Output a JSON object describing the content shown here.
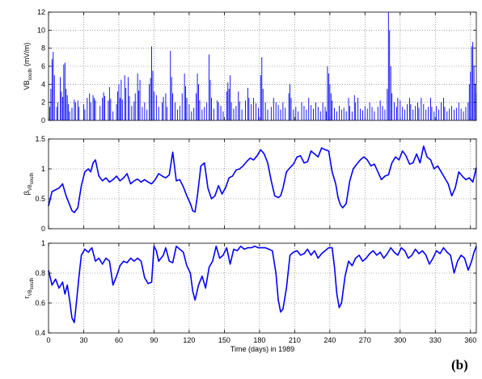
{
  "panel_label": "(b)",
  "colors": {
    "series": "#0000ff",
    "axes": "#000000",
    "grid": "#666666"
  },
  "chart_data": [
    {
      "type": "bar",
      "ylabel_main": "VB",
      "ylabel_sub": "south",
      "ylabel_unit": " (mV/m)",
      "xlim": [
        0,
        365
      ],
      "ylim": [
        0,
        12
      ],
      "yticks": [
        "0",
        "2",
        "4",
        "6",
        "8",
        "10",
        "12"
      ],
      "grid": true,
      "values": [
        [
          1,
          1.5
        ],
        [
          2,
          3.5
        ],
        [
          3,
          6.8
        ],
        [
          4,
          7.6
        ],
        [
          5,
          5.0
        ],
        [
          7,
          1.5
        ],
        [
          8,
          2.0
        ],
        [
          10,
          4.8
        ],
        [
          11,
          3.2
        ],
        [
          12,
          2.6
        ],
        [
          13,
          6.2
        ],
        [
          14,
          6.4
        ],
        [
          15,
          3.5
        ],
        [
          16,
          2.8
        ],
        [
          17,
          1.8
        ],
        [
          18,
          1.0
        ],
        [
          20,
          1.4
        ],
        [
          22,
          2.3
        ],
        [
          23,
          2.0
        ],
        [
          25,
          2.2
        ],
        [
          26,
          1.5
        ],
        [
          30,
          1.8
        ],
        [
          31,
          1.2
        ],
        [
          33,
          2.5
        ],
        [
          35,
          3.0
        ],
        [
          36,
          2.0
        ],
        [
          38,
          2.8
        ],
        [
          39,
          2.5
        ],
        [
          40,
          2.2
        ],
        [
          44,
          1.6
        ],
        [
          46,
          2.5
        ],
        [
          47,
          3.1
        ],
        [
          48,
          2.7
        ],
        [
          51,
          2.2
        ],
        [
          52,
          3.7
        ],
        [
          53,
          2.4
        ],
        [
          55,
          1.0
        ],
        [
          58,
          1.8
        ],
        [
          59,
          3.2
        ],
        [
          60,
          4.0
        ],
        [
          61,
          2.5
        ],
        [
          62,
          4.5
        ],
        [
          63,
          2.3
        ],
        [
          65,
          5.0
        ],
        [
          66,
          3.6
        ],
        [
          68,
          4.8
        ],
        [
          69,
          2.7
        ],
        [
          71,
          1.6
        ],
        [
          73,
          2.1
        ],
        [
          74,
          3.0
        ],
        [
          76,
          5.2
        ],
        [
          77,
          3.3
        ],
        [
          78,
          4.5
        ],
        [
          80,
          1.5
        ],
        [
          82,
          2.0
        ],
        [
          84,
          1.2
        ],
        [
          86,
          4.0
        ],
        [
          87,
          4.7
        ],
        [
          88,
          8.2
        ],
        [
          89,
          5.5
        ],
        [
          90,
          3.2
        ],
        [
          92,
          2.8
        ],
        [
          94,
          1.5
        ],
        [
          97,
          2.0
        ],
        [
          98,
          2.6
        ],
        [
          100,
          3.0
        ],
        [
          101,
          1.5
        ],
        [
          104,
          7.7
        ],
        [
          105,
          4.8
        ],
        [
          106,
          3.0
        ],
        [
          108,
          2.0
        ],
        [
          110,
          1.2
        ],
        [
          112,
          1.6
        ],
        [
          114,
          3.0
        ],
        [
          116,
          5.2
        ],
        [
          117,
          3.8
        ],
        [
          118,
          2.5
        ],
        [
          120,
          1.8
        ],
        [
          122,
          1.0
        ],
        [
          124,
          1.4
        ],
        [
          126,
          3.0
        ],
        [
          127,
          5.2
        ],
        [
          128,
          4.0
        ],
        [
          129,
          2.2
        ],
        [
          131,
          1.2
        ],
        [
          133,
          1.5
        ],
        [
          135,
          2.0
        ],
        [
          137,
          7.3
        ],
        [
          138,
          4.5
        ],
        [
          139,
          2.5
        ],
        [
          141,
          1.3
        ],
        [
          144,
          2.2
        ],
        [
          145,
          2.0
        ],
        [
          147,
          1.6
        ],
        [
          149,
          1.0
        ],
        [
          152,
          3.2
        ],
        [
          153,
          4.2
        ],
        [
          154,
          3.5
        ],
        [
          155,
          5.0
        ],
        [
          156,
          2.0
        ],
        [
          158,
          1.3
        ],
        [
          160,
          1.6
        ],
        [
          162,
          3.2
        ],
        [
          163,
          2.1
        ],
        [
          165,
          1.2
        ],
        [
          168,
          2.2
        ],
        [
          170,
          3.6
        ],
        [
          171,
          2.5
        ],
        [
          173,
          1.8
        ],
        [
          175,
          2.5
        ],
        [
          177,
          1.9
        ],
        [
          179,
          1.4
        ],
        [
          181,
          5.0
        ],
        [
          182,
          7.0
        ],
        [
          183,
          3.5
        ],
        [
          185,
          2.0
        ],
        [
          187,
          1.2
        ],
        [
          190,
          1.5
        ],
        [
          192,
          2.5
        ],
        [
          194,
          2.0
        ],
        [
          196,
          1.7
        ],
        [
          198,
          1.2
        ],
        [
          200,
          2.0
        ],
        [
          202,
          1.4
        ],
        [
          205,
          3.0
        ],
        [
          206,
          4.0
        ],
        [
          207,
          2.5
        ],
        [
          209,
          1.2
        ],
        [
          211,
          1.5
        ],
        [
          213,
          1.0
        ],
        [
          216,
          2.0
        ],
        [
          218,
          1.6
        ],
        [
          220,
          1.2
        ],
        [
          222,
          2.5
        ],
        [
          224,
          1.7
        ],
        [
          226,
          1.3
        ],
        [
          228,
          2.0
        ],
        [
          230,
          1.5
        ],
        [
          232,
          1.0
        ],
        [
          234,
          2.0
        ],
        [
          236,
          1.5
        ],
        [
          237,
          1.0
        ],
        [
          238,
          6.0
        ],
        [
          239,
          5.2
        ],
        [
          240,
          4.0
        ],
        [
          241,
          3.0
        ],
        [
          242,
          2.2
        ],
        [
          244,
          1.4
        ],
        [
          246,
          1.0
        ],
        [
          248,
          1.6
        ],
        [
          250,
          1.2
        ],
        [
          252,
          1.4
        ],
        [
          254,
          1.0
        ],
        [
          256,
          2.5
        ],
        [
          257,
          1.6
        ],
        [
          259,
          1.0
        ],
        [
          261,
          2.8
        ],
        [
          262,
          2.0
        ],
        [
          264,
          2.5
        ],
        [
          266,
          1.3
        ],
        [
          268,
          1.1
        ],
        [
          270,
          1.6
        ],
        [
          272,
          1.3
        ],
        [
          274,
          2.0
        ],
        [
          276,
          1.5
        ],
        [
          278,
          1.0
        ],
        [
          281,
          1.5
        ],
        [
          283,
          2.2
        ],
        [
          285,
          1.6
        ],
        [
          287,
          1.2
        ],
        [
          289,
          3.5
        ],
        [
          290,
          12.0
        ],
        [
          291,
          10.0
        ],
        [
          292,
          6.0
        ],
        [
          293,
          3.0
        ],
        [
          295,
          2.0
        ],
        [
          297,
          1.5
        ],
        [
          298,
          2.5
        ],
        [
          300,
          2.2
        ],
        [
          302,
          1.5
        ],
        [
          304,
          1.2
        ],
        [
          306,
          1.8
        ],
        [
          308,
          2.5
        ],
        [
          309,
          1.8
        ],
        [
          311,
          1.2
        ],
        [
          313,
          1.6
        ],
        [
          315,
          2.0
        ],
        [
          316,
          1.4
        ],
        [
          318,
          2.5
        ],
        [
          320,
          1.8
        ],
        [
          322,
          1.2
        ],
        [
          324,
          1.5
        ],
        [
          326,
          2.5
        ],
        [
          327,
          1.5
        ],
        [
          329,
          1.0
        ],
        [
          331,
          1.6
        ],
        [
          333,
          1.2
        ],
        [
          335,
          2.0
        ],
        [
          337,
          2.5
        ],
        [
          338,
          1.5
        ],
        [
          340,
          1.0
        ],
        [
          342,
          1.3
        ],
        [
          344,
          1.6
        ],
        [
          346,
          1.2
        ],
        [
          348,
          1.4
        ],
        [
          350,
          2.0
        ],
        [
          352,
          1.3
        ],
        [
          354,
          1.0
        ],
        [
          356,
          1.5
        ],
        [
          358,
          2.0
        ],
        [
          359,
          4.0
        ],
        [
          360,
          5.4
        ],
        [
          361,
          8.2
        ],
        [
          362,
          8.7
        ],
        [
          363,
          6.0
        ],
        [
          364,
          4.0
        ],
        [
          365,
          3.0
        ]
      ]
    },
    {
      "type": "line",
      "ylabel_main": "β",
      "ylabel_sub": "VB",
      "ylabel_subsub": "south",
      "xlim": [
        0,
        365
      ],
      "ylim": [
        0,
        1.5
      ],
      "yticks": [
        "0",
        "0.5",
        "1",
        "1.5"
      ],
      "grid": true,
      "x": [
        0,
        3,
        6,
        9,
        12,
        15,
        18,
        20,
        22,
        25,
        28,
        31,
        34,
        36,
        38,
        40,
        43,
        46,
        49,
        52,
        55,
        58,
        61,
        64,
        67,
        70,
        73,
        76,
        79,
        82,
        85,
        88,
        91,
        94,
        97,
        100,
        103,
        106,
        109,
        112,
        115,
        118,
        121,
        123,
        125,
        127,
        130,
        133,
        136,
        139,
        142,
        145,
        148,
        151,
        154,
        157,
        160,
        163,
        166,
        169,
        172,
        175,
        178,
        181,
        184,
        187,
        190,
        193,
        196,
        198,
        200,
        203,
        206,
        209,
        212,
        215,
        218,
        221,
        224,
        227,
        230,
        233,
        236,
        239,
        242,
        245,
        247,
        249,
        251,
        254,
        257,
        260,
        263,
        266,
        269,
        272,
        275,
        278,
        281,
        284,
        287,
        290,
        293,
        296,
        299,
        302,
        305,
        308,
        311,
        314,
        317,
        320,
        323,
        326,
        329,
        332,
        335,
        338,
        341,
        344,
        347,
        350,
        353,
        356,
        359,
        362,
        365
      ],
      "y": [
        0.38,
        0.62,
        0.65,
        0.68,
        0.75,
        0.55,
        0.4,
        0.3,
        0.27,
        0.35,
        0.72,
        0.95,
        1.0,
        0.95,
        1.1,
        1.15,
        0.88,
        0.8,
        0.85,
        0.78,
        0.82,
        0.88,
        0.8,
        0.85,
        0.92,
        0.75,
        0.8,
        0.83,
        0.78,
        0.82,
        0.78,
        0.75,
        0.82,
        0.92,
        0.88,
        0.85,
        0.9,
        1.28,
        0.8,
        0.82,
        0.7,
        0.55,
        0.42,
        0.3,
        0.28,
        0.55,
        1.05,
        1.1,
        0.68,
        0.5,
        0.55,
        0.72,
        0.58,
        0.68,
        0.85,
        0.88,
        0.98,
        1.0,
        1.05,
        1.12,
        1.18,
        1.15,
        1.22,
        1.32,
        1.25,
        1.1,
        0.8,
        0.55,
        0.52,
        0.55,
        0.68,
        0.95,
        1.02,
        1.08,
        1.2,
        1.22,
        1.1,
        1.12,
        1.3,
        1.25,
        1.2,
        1.35,
        1.32,
        1.3,
        0.95,
        0.75,
        0.52,
        0.4,
        0.35,
        0.42,
        0.8,
        1.0,
        1.08,
        1.15,
        1.2,
        1.15,
        1.05,
        1.08,
        0.95,
        0.82,
        0.88,
        0.9,
        1.1,
        1.2,
        1.15,
        1.3,
        1.22,
        1.08,
        1.1,
        1.25,
        1.1,
        1.38,
        1.2,
        1.15,
        1.0,
        1.05,
        0.95,
        0.85,
        0.75,
        0.55,
        0.68,
        0.95,
        0.88,
        0.82,
        0.85,
        0.78,
        1.02
      ]
    },
    {
      "type": "line",
      "ylabel_main": "r",
      "ylabel_sub": "VB",
      "ylabel_subsub": "south",
      "xlabel": "Time (days) in 1989",
      "xlim": [
        0,
        365
      ],
      "ylim": [
        0.4,
        1.0
      ],
      "yticks": [
        "0.4",
        "0.6",
        "0.8",
        "1"
      ],
      "xticks": [
        "0",
        "30",
        "60",
        "90",
        "120",
        "150",
        "180",
        "210",
        "240",
        "270",
        "300",
        "330",
        "360"
      ],
      "grid": true,
      "x": [
        0,
        3,
        6,
        9,
        12,
        14,
        16,
        18,
        20,
        22,
        24,
        26,
        28,
        31,
        34,
        37,
        40,
        43,
        46,
        49,
        52,
        55,
        58,
        61,
        64,
        67,
        70,
        73,
        76,
        79,
        82,
        85,
        88,
        90,
        92,
        94,
        96,
        98,
        100,
        103,
        106,
        109,
        112,
        115,
        118,
        121,
        123,
        125,
        128,
        131,
        134,
        137,
        140,
        143,
        146,
        149,
        152,
        155,
        158,
        161,
        164,
        167,
        170,
        173,
        176,
        179,
        182,
        185,
        188,
        191,
        194,
        196,
        198,
        200,
        203,
        206,
        209,
        212,
        215,
        218,
        221,
        224,
        227,
        230,
        233,
        236,
        239,
        242,
        244,
        246,
        248,
        250,
        253,
        256,
        259,
        262,
        265,
        268,
        271,
        274,
        277,
        280,
        283,
        286,
        289,
        292,
        295,
        298,
        301,
        304,
        307,
        310,
        313,
        316,
        319,
        322,
        325,
        328,
        331,
        334,
        337,
        340,
        343,
        346,
        349,
        352,
        355,
        358,
        361,
        363,
        365
      ],
      "y": [
        0.82,
        0.72,
        0.76,
        0.7,
        0.74,
        0.66,
        0.72,
        0.62,
        0.5,
        0.47,
        0.62,
        0.78,
        0.92,
        0.96,
        0.94,
        0.97,
        0.88,
        0.9,
        0.86,
        0.9,
        0.88,
        0.72,
        0.78,
        0.85,
        0.88,
        0.87,
        0.9,
        0.88,
        0.9,
        0.88,
        0.77,
        0.73,
        0.74,
        0.98,
        0.95,
        0.88,
        0.9,
        0.92,
        0.97,
        0.88,
        0.87,
        0.98,
        0.96,
        0.94,
        0.85,
        0.8,
        0.68,
        0.62,
        0.72,
        0.78,
        0.7,
        0.84,
        0.88,
        0.98,
        0.9,
        0.92,
        0.97,
        0.86,
        0.96,
        0.95,
        0.98,
        0.96,
        0.97,
        0.97,
        0.98,
        0.97,
        0.97,
        0.97,
        0.96,
        0.95,
        0.8,
        0.62,
        0.54,
        0.56,
        0.7,
        0.92,
        0.94,
        0.95,
        0.92,
        0.93,
        0.96,
        0.92,
        0.95,
        0.9,
        0.93,
        0.95,
        0.97,
        0.97,
        0.84,
        0.66,
        0.57,
        0.6,
        0.78,
        0.88,
        0.85,
        0.9,
        0.92,
        0.88,
        0.9,
        0.93,
        0.95,
        0.92,
        0.94,
        0.9,
        0.93,
        0.97,
        0.94,
        0.92,
        0.97,
        0.95,
        0.9,
        0.92,
        0.96,
        0.93,
        0.95,
        0.92,
        0.86,
        0.9,
        0.95,
        0.93,
        0.97,
        0.94,
        0.92,
        0.8,
        0.88,
        0.92,
        0.9,
        0.82,
        0.88,
        0.94,
        0.98
      ]
    }
  ]
}
